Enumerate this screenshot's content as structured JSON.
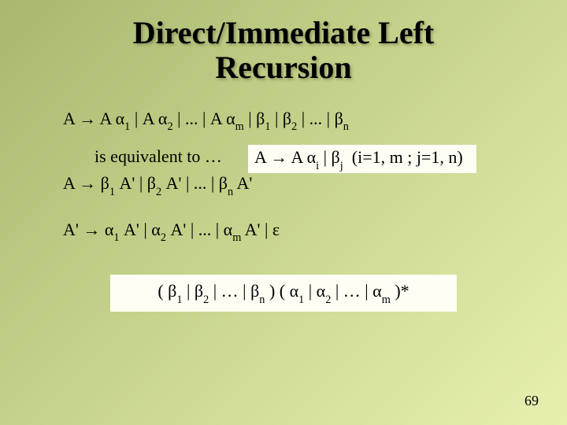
{
  "title_line1": "Direct/Immediate Left",
  "title_line2": "Recursion",
  "grammar_orig": {
    "lhs": "A",
    "arrow": " → ",
    "terms": "A α₁ | A α₂ | ... | A αₘ | β₁ | β₂ | ... | βₙ"
  },
  "equiv_label": "is equivalent to …",
  "callout_text": "A → A αᵢ | βⱼ  (i=1, m ; j=1, n)",
  "grammar_A": "A → β₁ A' | β₂ A' | ... | βₙ A'",
  "grammar_Aprime": "A' → α₁ A' | α₂ A' | ... | αₘ A' | ε",
  "regex": "( β₁ | β₂ | … | βₙ ) ( α₁ | α₂ | … | αₘ )*",
  "page_number": "69",
  "colors": {
    "bg_start": "#a8b86f",
    "bg_end": "#e8f0b0",
    "box_bg": "#fffef5",
    "text": "#000000"
  },
  "fonts": {
    "title_size": 40,
    "body_size": 22,
    "family": "Times New Roman"
  }
}
